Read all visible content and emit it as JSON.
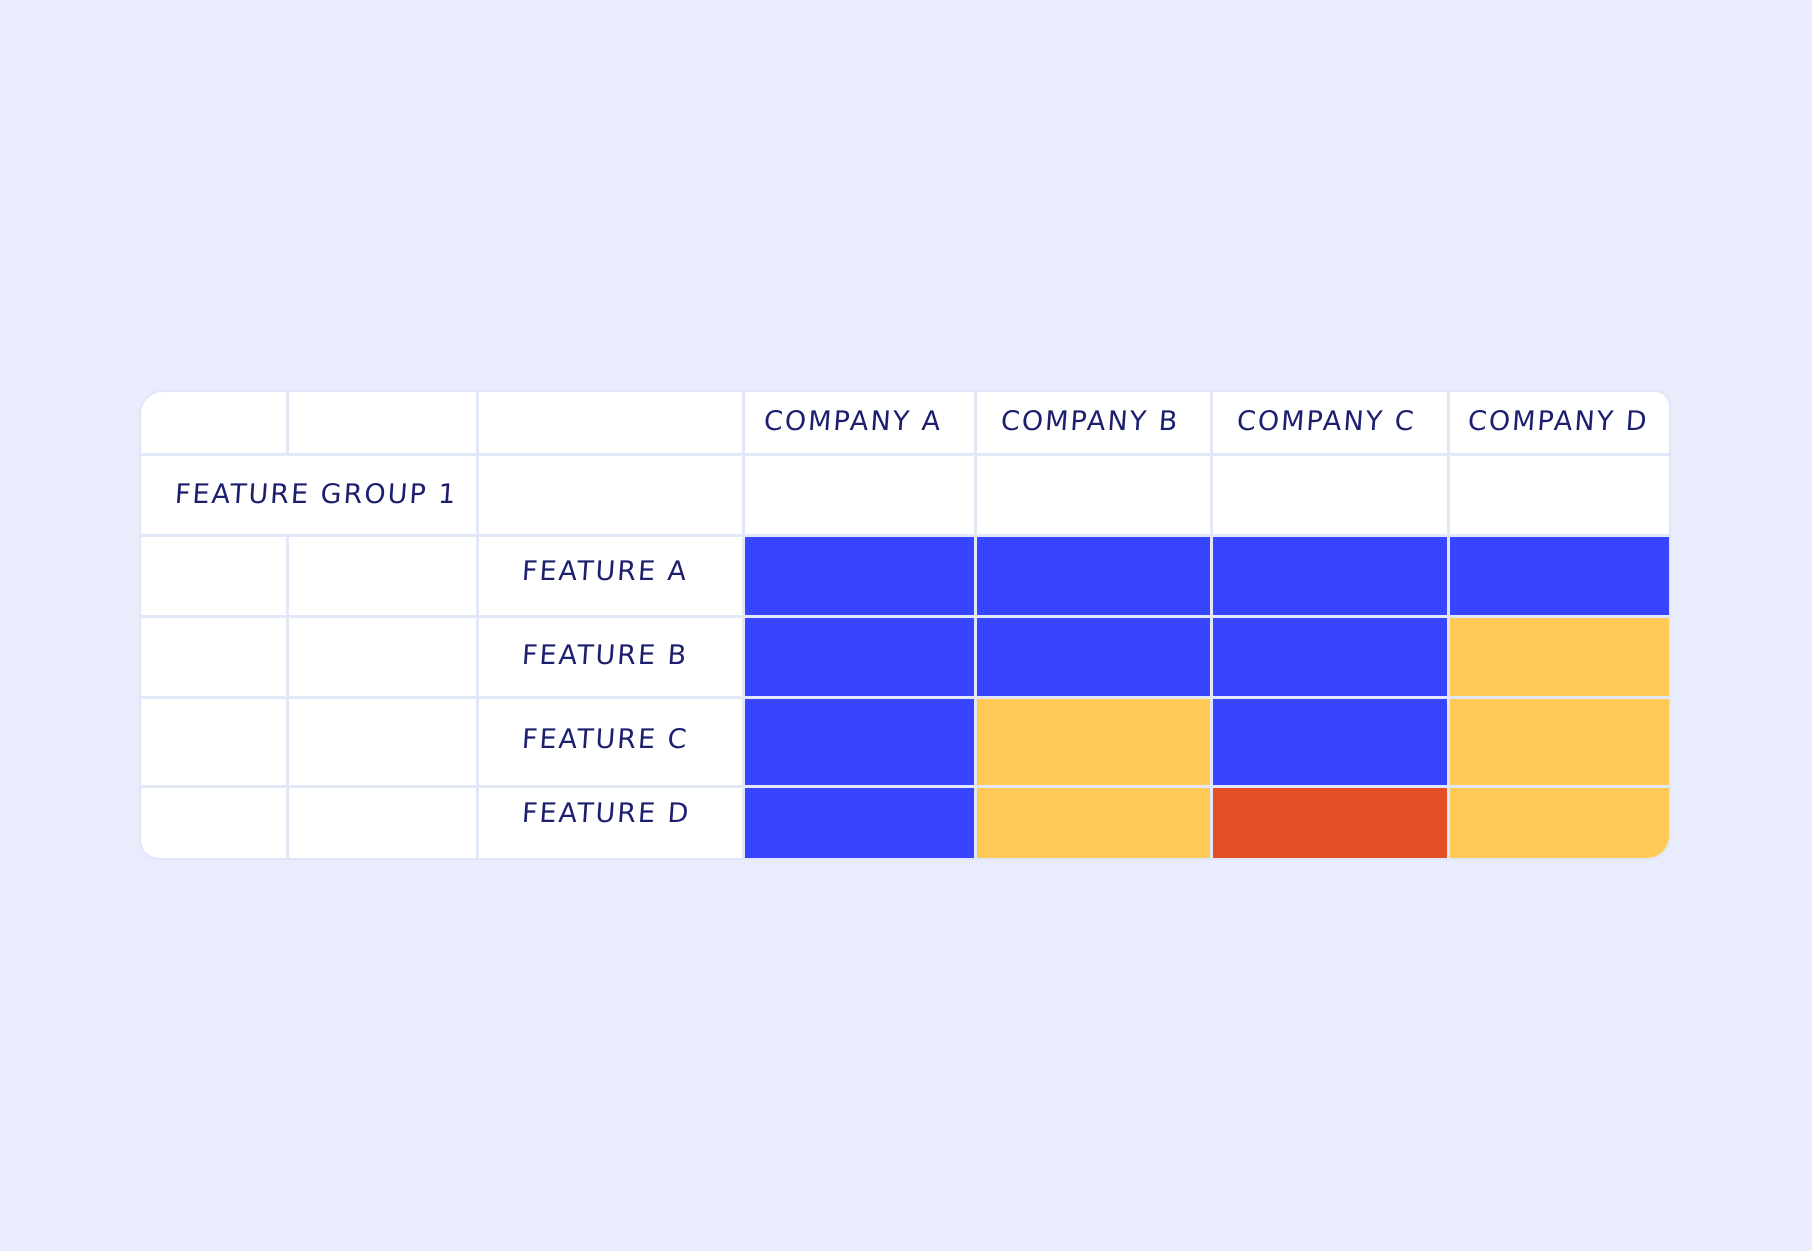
{
  "table": {
    "group_label": "FEATURE GROUP 1",
    "companies": [
      "COMPANY A",
      "COMPANY B",
      "COMPANY C",
      "COMPANY D"
    ],
    "features": [
      "FEATURE A",
      "FEATURE B",
      "FEATURE C",
      "FEATURE D"
    ]
  },
  "colors": {
    "blue": "#3745ff",
    "yellow": "#fec957",
    "red": "#e44f26",
    "background": "#e8ecfc",
    "text": "#1c1f6e"
  },
  "chart_data": {
    "type": "heatmap",
    "x": [
      "COMPANY A",
      "COMPANY B",
      "COMPANY C",
      "COMPANY D"
    ],
    "y": [
      "FEATURE A",
      "FEATURE B",
      "FEATURE C",
      "FEATURE D"
    ],
    "cells": [
      [
        "blue",
        "blue",
        "blue",
        "blue"
      ],
      [
        "blue",
        "blue",
        "blue",
        "yellow"
      ],
      [
        "blue",
        "yellow",
        "blue",
        "yellow"
      ],
      [
        "blue",
        "yellow",
        "red",
        "yellow"
      ]
    ]
  }
}
